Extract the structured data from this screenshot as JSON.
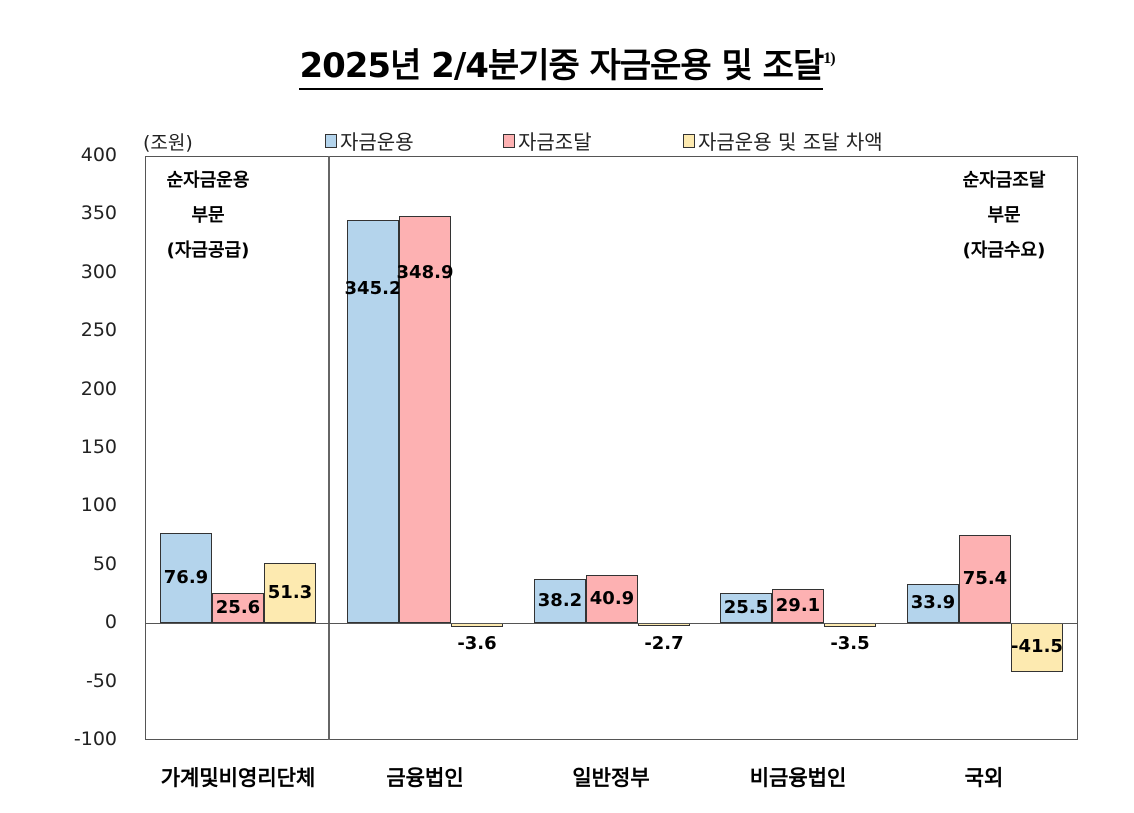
{
  "title": "2025년  2/4분기중  자금운용  및  조달",
  "title_footnote": "1)",
  "unit_label": "(조원)",
  "legend": [
    {
      "label": "자금운용",
      "color": "#b4d4ec"
    },
    {
      "label": "자금조달",
      "color": "#fdb1b2"
    },
    {
      "label": "자금운용 및 조달 차액",
      "color": "#fdeab0"
    }
  ],
  "notes": {
    "left": [
      "순자금운용",
      "부문",
      "(자금공급)"
    ],
    "right": [
      "순자금조달",
      "부문",
      "(자금수요)"
    ]
  },
  "chart_data": {
    "type": "bar",
    "title": "2025년 2/4분기중 자금운용 및 조달 1)",
    "xlabel": "",
    "ylabel": "(조원)",
    "ylim": [
      -100,
      400
    ],
    "yticks": [
      400,
      350,
      300,
      250,
      200,
      150,
      100,
      50,
      0,
      -50,
      -100
    ],
    "grid": false,
    "legend_position": "top",
    "categories": [
      "가계및비영리단체",
      "금융법인",
      "일반정부",
      "비금융법인",
      "국외"
    ],
    "series": [
      {
        "name": "자금운용",
        "color": "#b4d4ec",
        "values": [
          76.9,
          345.2,
          38.2,
          25.5,
          33.9
        ]
      },
      {
        "name": "자금조달",
        "color": "#fdb1b2",
        "values": [
          25.6,
          348.9,
          40.9,
          29.1,
          75.4
        ]
      },
      {
        "name": "자금운용 및 조달 차액",
        "color": "#fdeab0",
        "values": [
          51.3,
          -3.6,
          -2.7,
          -3.5,
          -41.5
        ]
      }
    ],
    "annotations": [
      "순자금운용 부문 (자금공급)",
      "순자금조달 부문 (자금수요)"
    ]
  }
}
